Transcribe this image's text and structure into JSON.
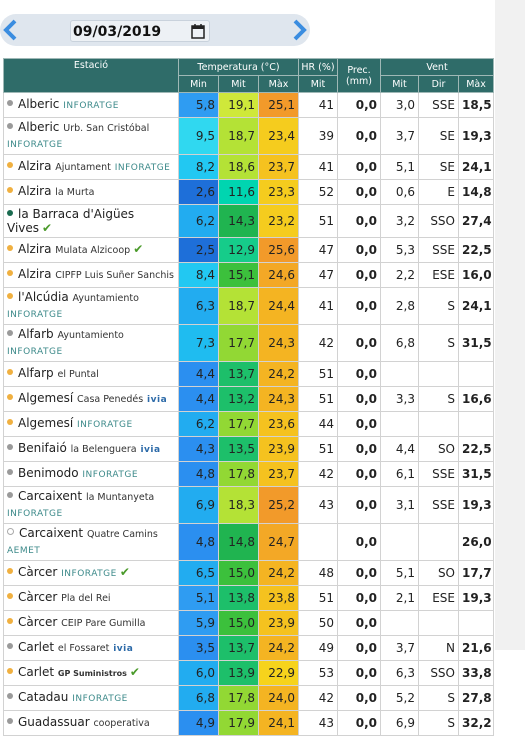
{
  "header": {
    "date": "09/03/2019"
  },
  "table": {
    "groups": [
      "Estació",
      "Temperatura (°C)",
      "HR (%)",
      "Prec. (mm)",
      "Vent"
    ],
    "subheaders": [
      "Min",
      "Mit",
      "Màx",
      "Mit",
      "Mit",
      "Dir",
      "Màx"
    ],
    "rows": [
      {
        "station": "Alberic",
        "place": null,
        "network": "INFORATGE",
        "dot": "#9a9a9a",
        "check": false,
        "values": [
          "5,8",
          "19,1",
          "25,1",
          "41",
          "0,0",
          "3,0",
          "SSE",
          "18,5"
        ]
      },
      {
        "station": "Alberic",
        "place": "Urb. San Cristóbal",
        "network": "INFORATGE",
        "dot": "#9a9a9a",
        "check": false,
        "values": [
          "9,5",
          "18,7",
          "23,4",
          "39",
          "0,0",
          "3,7",
          "SE",
          "19,3"
        ]
      },
      {
        "station": "Alzira",
        "place": "Ajuntament",
        "network": "INFORATGE",
        "dot": "#f0b040",
        "check": false,
        "values": [
          "8,2",
          "18,6",
          "23,7",
          "41",
          "0,0",
          "5,1",
          "SE",
          "24,1"
        ]
      },
      {
        "station": "Alzira",
        "place": "la Murta",
        "network": null,
        "dot": "#f0b040",
        "check": false,
        "values": [
          "2,6",
          "11,6",
          "23,3",
          "52",
          "0,0",
          "0,6",
          "E",
          "14,8"
        ]
      },
      {
        "station": "la Barraca d'Aigües Vives",
        "place": null,
        "network": null,
        "dot": "#1a6b50",
        "check": true,
        "values": [
          "6,2",
          "14,3",
          "23,2",
          "51",
          "0,0",
          "3,2",
          "SSO",
          "27,4"
        ]
      },
      {
        "station": "Alzira",
        "place": "Mulata Alzicoop",
        "network": null,
        "dot": "#f0b040",
        "check": true,
        "values": [
          "2,5",
          "12,9",
          "25,6",
          "47",
          "0,0",
          "5,3",
          "SSE",
          "22,5"
        ]
      },
      {
        "station": "Alzira",
        "place": "CIPFP Luis Suñer Sanchis",
        "network": null,
        "dot": "#f0b040",
        "check": false,
        "values": [
          "8,4",
          "15,1",
          "24,6",
          "47",
          "0,0",
          "2,2",
          "ESE",
          "16,0"
        ]
      },
      {
        "station": "l'Alcúdia",
        "place": "Ayuntamiento",
        "network": "INFORATGE",
        "dot": "#f0b040",
        "check": false,
        "values": [
          "6,3",
          "18,7",
          "24,4",
          "41",
          "0,0",
          "2,8",
          "S",
          "24,1"
        ]
      },
      {
        "station": "Alfarb",
        "place": "Ayuntamiento",
        "network": "INFORATGE",
        "dot": "#9a9a9a",
        "check": false,
        "values": [
          "7,3",
          "17,7",
          "24,3",
          "42",
          "0,0",
          "6,8",
          "S",
          "31,5"
        ]
      },
      {
        "station": "Alfarp",
        "place": "el Puntal",
        "network": null,
        "dot": "#f0b040",
        "check": false,
        "values": [
          "4,4",
          "13,7",
          "24,2",
          "51",
          "0,0",
          null,
          null,
          null
        ]
      },
      {
        "station": "Algemesí",
        "place": "Casa Penedés",
        "network": "ivia",
        "dot": "#f0b040",
        "check": false,
        "values": [
          "4,4",
          "13,2",
          "24,3",
          "51",
          "0,0",
          "3,3",
          "S",
          "16,6"
        ]
      },
      {
        "station": "Algemesí",
        "place": null,
        "network": "INFORATGE",
        "dot": "#f0b040",
        "check": false,
        "values": [
          "6,2",
          "17,7",
          "23,6",
          "44",
          "0,0",
          null,
          null,
          null
        ]
      },
      {
        "station": "Benifaió",
        "place": "la Belenguera",
        "network": "ivia",
        "dot": "#9a9a9a",
        "check": false,
        "values": [
          "4,3",
          "13,5",
          "23,9",
          "51",
          "0,0",
          "4,4",
          "SO",
          "22,5"
        ]
      },
      {
        "station": "Benimodo",
        "place": null,
        "network": "INFORATGE",
        "dot": "#9a9a9a",
        "check": false,
        "values": [
          "4,8",
          "17,8",
          "23,7",
          "42",
          "0,0",
          "6,1",
          "SSE",
          "31,5"
        ]
      },
      {
        "station": "Carcaixent",
        "place": "la Muntanyeta",
        "network": "INFORATGE",
        "dot": "#9a9a9a",
        "check": false,
        "values": [
          "6,9",
          "18,3",
          "25,2",
          "43",
          "0,0",
          "3,1",
          "SSE",
          "19,3"
        ]
      },
      {
        "station": "Carcaixent",
        "place": "Quatre Camins",
        "network": "AEMET",
        "dot": "none",
        "check": false,
        "values": [
          "4,8",
          "14,8",
          "24,7",
          null,
          "0,0",
          null,
          null,
          "26,0"
        ]
      },
      {
        "station": "Càrcer",
        "place": null,
        "network": "INFORATGE",
        "dot": "#f0b040",
        "check": true,
        "values": [
          "6,5",
          "15,0",
          "24,2",
          "48",
          "0,0",
          "5,1",
          "SO",
          "17,7"
        ]
      },
      {
        "station": "Càrcer",
        "place": "Pla del Rei",
        "network": null,
        "dot": "#f0b040",
        "check": false,
        "values": [
          "5,1",
          "13,8",
          "23,8",
          "51",
          "0,0",
          "2,1",
          "ESE",
          "19,3"
        ]
      },
      {
        "station": "Càrcer",
        "place": "CEIP Pare Gumilla",
        "network": null,
        "dot": "#f0b040",
        "check": false,
        "values": [
          "5,9",
          "15,0",
          "23,9",
          "50",
          "0,0",
          null,
          null,
          null
        ]
      },
      {
        "station": "Carlet",
        "place": "el Fossaret",
        "network": "ivia",
        "dot": "#9a9a9a",
        "check": false,
        "values": [
          "3,5",
          "13,7",
          "24,2",
          "49",
          "0,0",
          "3,7",
          "N",
          "21,6"
        ]
      },
      {
        "station": "Carlet",
        "place": null,
        "network": "GP Suministros",
        "dot": "#f0b040",
        "check": true,
        "values": [
          "6,0",
          "13,9",
          "22,9",
          "53",
          "0,0",
          "6,3",
          "SSO",
          "33,8"
        ]
      },
      {
        "station": "Catadau",
        "place": null,
        "network": "INFORATGE",
        "dot": "#9a9a9a",
        "check": false,
        "values": [
          "6,8",
          "17,8",
          "24,0",
          "42",
          "0,0",
          "5,2",
          "S",
          "27,8"
        ]
      },
      {
        "station": "Guadassuar",
        "place": "cooperativa",
        "network": null,
        "dot": "#9a9a9a",
        "check": false,
        "values": [
          "4,9",
          "17,9",
          "24,1",
          "43",
          "0,0",
          "6,9",
          "S",
          "32,2"
        ]
      }
    ]
  }
}
